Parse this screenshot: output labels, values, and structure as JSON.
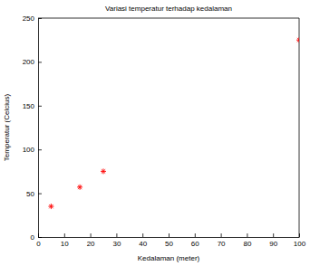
{
  "chart_data": {
    "type": "scatter",
    "title": "Variasi temperatur terhadap kedalaman",
    "xlabel": "Kedalaman (meter)",
    "ylabel": "Temperatur (Celcius)",
    "x": [
      5,
      16,
      25,
      100
    ],
    "values": [
      35,
      57,
      75,
      225
    ],
    "color": "#ff0000",
    "marker": "asterisk",
    "xlim": [
      0,
      100
    ],
    "xticks": [
      0,
      10,
      20,
      30,
      40,
      50,
      60,
      70,
      80,
      90,
      100
    ],
    "ylim": [
      0,
      250
    ],
    "yticks": [
      0,
      50,
      100,
      150,
      200,
      250
    ],
    "grid": false
  }
}
